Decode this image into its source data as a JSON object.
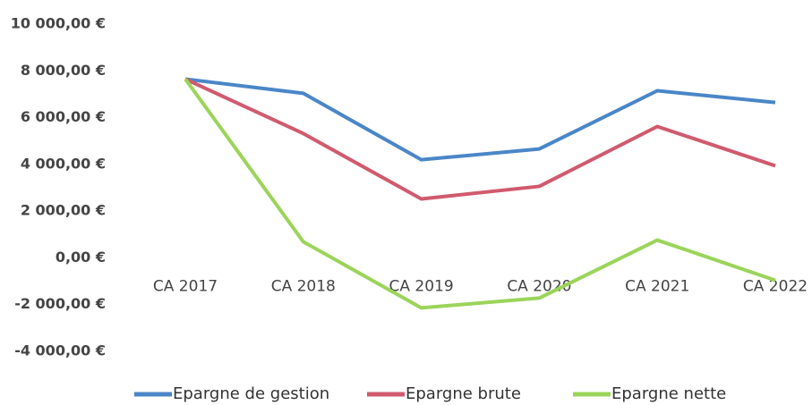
{
  "chart_data": {
    "type": "line",
    "categories": [
      "CA 2017",
      "CA 2018",
      "CA 2019",
      "CA 2020",
      "CA 2021",
      "CA 2022"
    ],
    "series": [
      {
        "name": "Epargne de gestion",
        "color": "#4a86c8",
        "values": [
          7650,
          7040,
          4200,
          4660,
          7150,
          6650
        ]
      },
      {
        "name": "Epargne brute",
        "color": "#d05a6e",
        "values": [
          7650,
          5320,
          2520,
          3060,
          5620,
          3940
        ]
      },
      {
        "name": "Epargne nette",
        "color": "#9bd45a",
        "values": [
          7650,
          690,
          -2140,
          -1720,
          760,
          -960
        ]
      }
    ],
    "ylim": [
      -4000,
      10000
    ],
    "yticks": [
      {
        "value": -4000,
        "label": "-4 000,00 €"
      },
      {
        "value": -2000,
        "label": "-2 000,00 €"
      },
      {
        "value": 0,
        "label": "0,00 €"
      },
      {
        "value": 2000,
        "label": "2 000,00 €"
      },
      {
        "value": 4000,
        "label": "4 000,00 €"
      },
      {
        "value": 6000,
        "label": "6 000,00 €"
      },
      {
        "value": 8000,
        "label": "8 000,00 €"
      },
      {
        "value": 10000,
        "label": "10 000,00 €"
      }
    ],
    "grid": false,
    "legend": "bottom"
  }
}
